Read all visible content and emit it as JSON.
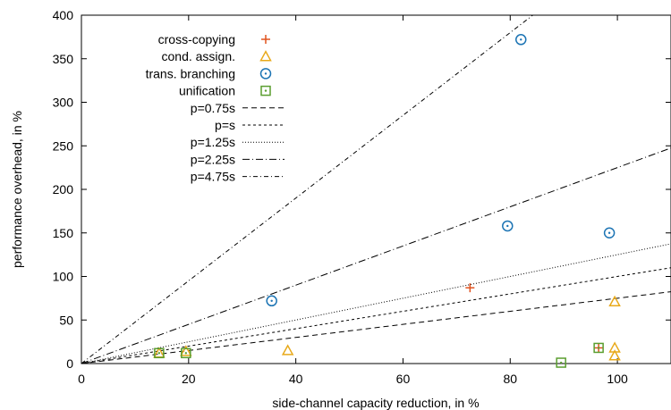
{
  "chart_data": {
    "type": "scatter",
    "xlabel": "side-channel capacity reduction, in %",
    "ylabel": "performance overhead, in %",
    "xlim": [
      0,
      110
    ],
    "ylim": [
      0,
      400
    ],
    "xticks": [
      0,
      20,
      40,
      60,
      80,
      100
    ],
    "yticks": [
      0,
      50,
      100,
      150,
      200,
      250,
      300,
      350,
      400
    ],
    "grid": false,
    "legend_position": "top-left",
    "series": [
      {
        "name": "cross-copying",
        "marker": "plus",
        "color": "#e0521e",
        "points": [
          [
            72.5,
            87
          ],
          [
            96.5,
            18
          ]
        ]
      },
      {
        "name": "cond. assign.",
        "marker": "triangle",
        "color": "#e8a91a",
        "points": [
          [
            14.5,
            12
          ],
          [
            19.5,
            14
          ],
          [
            38.5,
            15
          ],
          [
            99.5,
            71
          ],
          [
            99.5,
            18
          ],
          [
            99.5,
            9
          ]
        ]
      },
      {
        "name": "trans. branching",
        "marker": "circle-dot",
        "color": "#1c74b4",
        "points": [
          [
            35.5,
            72
          ],
          [
            79.5,
            158
          ],
          [
            82,
            372
          ],
          [
            98.5,
            150
          ]
        ]
      },
      {
        "name": "unification",
        "marker": "square-dot",
        "color": "#5a9e2f",
        "points": [
          [
            14.5,
            12
          ],
          [
            19.5,
            12
          ],
          [
            89.5,
            1
          ],
          [
            96.5,
            18
          ]
        ]
      }
    ],
    "lines": [
      {
        "name": "p=0.75s",
        "slope": 0.75,
        "dash": "6,4"
      },
      {
        "name": "p=s",
        "slope": 1.0,
        "dash": "3,3"
      },
      {
        "name": "p=1.25s",
        "slope": 1.25,
        "dash": "1,2"
      },
      {
        "name": "p=2.25s",
        "slope": 2.25,
        "dash": "8,3,1,3"
      },
      {
        "name": "p=4.75s",
        "slope": 4.75,
        "dash": "5,3,1,3"
      }
    ]
  }
}
